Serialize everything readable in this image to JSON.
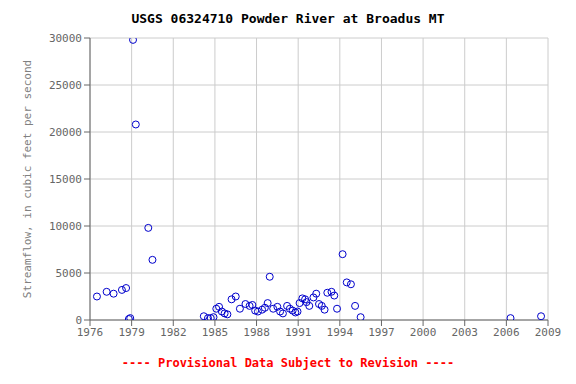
{
  "chart_data": {
    "type": "scatter",
    "title": "USGS 06324710 Powder River at Broadus MT",
    "y_label": "Streamflow, in cubic feet per second",
    "annotations": [
      "---- Provisional Data Subject to Revision ----"
    ],
    "x": [
      1976.5,
      1977.2,
      1977.7,
      1978.3,
      1978.6,
      1978.8,
      1978.9,
      1979.1,
      1979.3,
      1980.2,
      1980.5,
      1984.2,
      1984.5,
      1984.7,
      1984.9,
      1985.1,
      1985.3,
      1985.5,
      1985.7,
      1985.9,
      1986.2,
      1986.5,
      1986.8,
      1987.2,
      1987.5,
      1987.7,
      1987.9,
      1988.1,
      1988.4,
      1988.6,
      1988.8,
      1988.95,
      1989.2,
      1989.5,
      1989.7,
      1989.9,
      1990.2,
      1990.4,
      1990.6,
      1990.8,
      1990.95,
      1991.1,
      1991.3,
      1991.5,
      1991.6,
      1991.8,
      1992.1,
      1992.3,
      1992.5,
      1992.7,
      1992.9,
      1993.1,
      1993.4,
      1993.6,
      1993.8,
      1994.2,
      1994.5,
      1994.8,
      1995.1,
      1995.5,
      2006.3,
      2008.5
    ],
    "values": [
      2500,
      3000,
      2800,
      3200,
      3400,
      100,
      200,
      29800,
      20800,
      9800,
      6400,
      400,
      200,
      200,
      300,
      1200,
      1400,
      900,
      700,
      600,
      2200,
      2500,
      1200,
      1700,
      1500,
      1600,
      1000,
      900,
      1100,
      1300,
      1800,
      4600,
      1200,
      1400,
      900,
      700,
      1500,
      1200,
      1000,
      800,
      900,
      1800,
      2300,
      2200,
      1900,
      1500,
      2400,
      2800,
      1700,
      1500,
      1100,
      2900,
      3000,
      2600,
      1200,
      7000,
      4000,
      3800,
      1500,
      300,
      200,
      400
    ],
    "color": "#0000cc",
    "marker": "circle",
    "xlim": [
      1976,
      2009
    ],
    "ylim": [
      0,
      30000
    ],
    "xticks": [
      1976,
      1979,
      1982,
      1985,
      1988,
      1991,
      1994,
      1997,
      2000,
      2003,
      2006,
      2009
    ],
    "yticks": [
      0,
      5000,
      10000,
      15000,
      20000,
      25000,
      30000
    ],
    "grid": true
  }
}
